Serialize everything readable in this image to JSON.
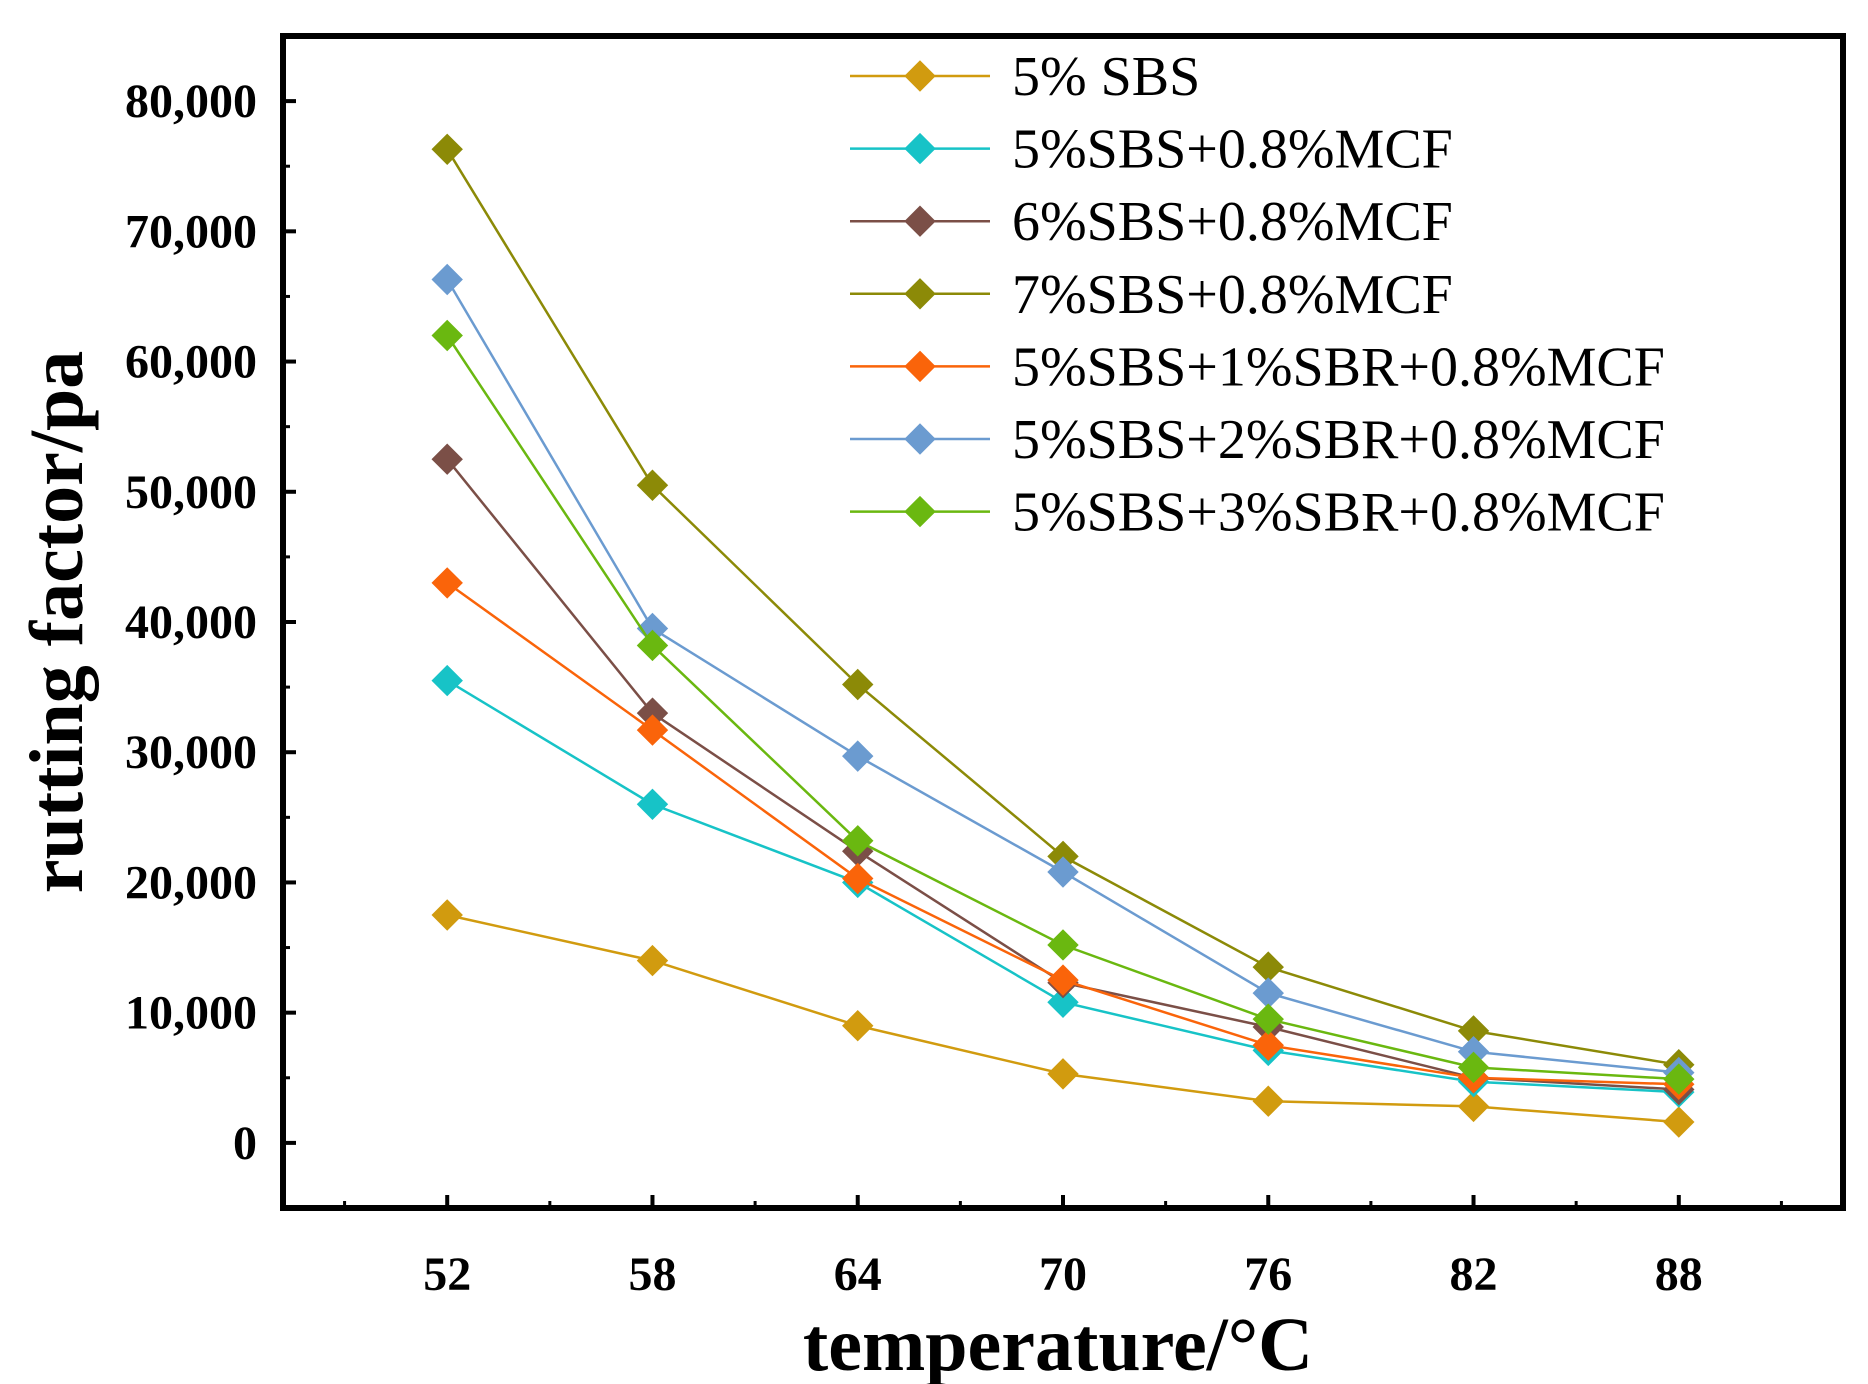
{
  "chart_data": {
    "type": "line",
    "title": "",
    "xlabel": "temperature/°C",
    "ylabel": "rutting factor/pa",
    "x": [
      52,
      58,
      64,
      70,
      76,
      82,
      88
    ],
    "x_tick_labels": [
      "52",
      "58",
      "64",
      "70",
      "76",
      "82",
      "88"
    ],
    "xlim": [
      47.2,
      92.8
    ],
    "ylim": [
      -5000,
      85000
    ],
    "y_ticks": [
      0,
      10000,
      20000,
      30000,
      40000,
      50000,
      60000,
      70000,
      80000
    ],
    "y_tick_labels": [
      "0",
      "10,000",
      "20,000",
      "30,000",
      "40,000",
      "50,000",
      "60,000",
      "70,000",
      "80,000"
    ],
    "grid": false,
    "legend_position": "top-right",
    "series": [
      {
        "name": "5% SBS",
        "color": "#d19b0f",
        "marker": "diamond",
        "values": [
          17500,
          14000,
          9000,
          5300,
          3200,
          2800,
          1600
        ]
      },
      {
        "name": "5%SBS+0.8%MCF",
        "color": "#17c3c7",
        "marker": "diamond",
        "values": [
          35500,
          26000,
          20000,
          10800,
          7100,
          4700,
          3900
        ]
      },
      {
        "name": "6%SBS+0.8%MCF",
        "color": "#7b4f47",
        "marker": "diamond",
        "values": [
          52500,
          33000,
          22400,
          12300,
          8900,
          5000,
          4100
        ]
      },
      {
        "name": "7%SBS+0.8%MCF",
        "color": "#8c8a07",
        "marker": "diamond",
        "values": [
          76300,
          50500,
          35200,
          22000,
          13500,
          8600,
          6000
        ]
      },
      {
        "name": "5%SBS+1%SBR+0.8%MCF",
        "color": "#fa640a",
        "marker": "diamond",
        "values": [
          43000,
          31700,
          20300,
          12500,
          7500,
          5000,
          4500
        ]
      },
      {
        "name": "5%SBS+2%SBR+0.8%MCF",
        "color": "#6b9bd0",
        "marker": "diamond",
        "values": [
          66300,
          39500,
          29700,
          20800,
          11500,
          7000,
          5400
        ]
      },
      {
        "name": "5%SBS+3%SBR+0.8%MCF",
        "color": "#6ab810",
        "marker": "diamond",
        "values": [
          62000,
          38200,
          23200,
          15200,
          9500,
          5800,
          4900
        ]
      }
    ]
  }
}
